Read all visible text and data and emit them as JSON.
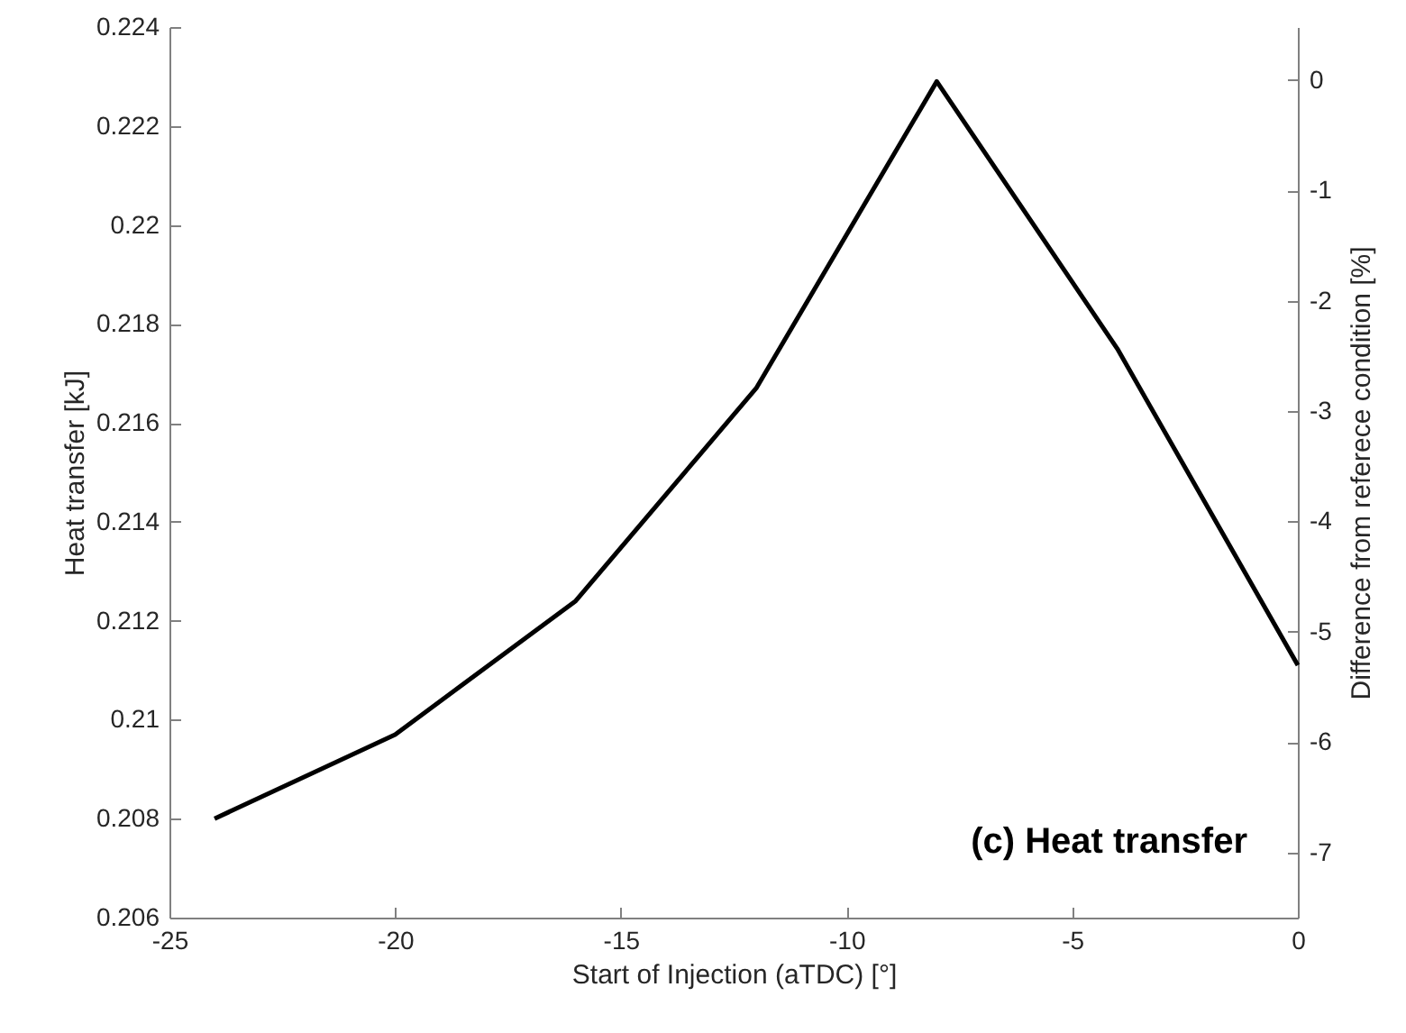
{
  "chart_data": {
    "type": "line",
    "xlabel": "Start of Injection (aTDC) [°]",
    "ylabel": "Heat transfer [kJ]",
    "y2label": "Difference from referece condition [%]",
    "x": [
      -24,
      -20,
      -16,
      -12,
      -8,
      -4,
      0
    ],
    "series": [
      {
        "color": "#000000",
        "values": [
          0.208,
          0.2097,
          0.2124,
          0.2167,
          0.2229,
          0.2175,
          0.2111
        ]
      }
    ],
    "xlim": [
      -25,
      0
    ],
    "xticks": [
      -25,
      -20,
      -15,
      -10,
      -5,
      0
    ],
    "ylim": [
      0.206,
      0.224
    ],
    "yticks": [
      0.206,
      0.208,
      0.21,
      0.212,
      0.214,
      0.216,
      0.218,
      0.22,
      0.222,
      0.224
    ],
    "y2lim": [
      -7.59,
      0.48
    ],
    "y2ticks": [
      -7,
      -6,
      -5,
      -4,
      -3,
      -2,
      -1,
      0
    ],
    "annotations": [
      "(c) Heat transfer"
    ],
    "grid": false,
    "marker": "none",
    "line_style": "solid"
  }
}
